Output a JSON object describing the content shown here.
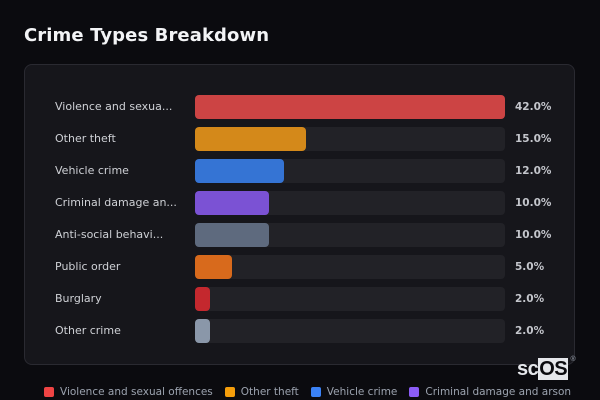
{
  "page": {
    "title": "Crime Types Breakdown"
  },
  "chart_data": {
    "type": "bar",
    "orientation": "horizontal",
    "title": "Crime Types Breakdown",
    "categories": [
      "Violence and sexual offences",
      "Other theft",
      "Vehicle crime",
      "Criminal damage and arson",
      "Anti-social behaviour",
      "Public order",
      "Burglary",
      "Other crime"
    ],
    "display_labels": [
      "Violence and sexua...",
      "Other theft",
      "Vehicle crime",
      "Criminal damage an...",
      "Anti-social behavi...",
      "Public order",
      "Burglary",
      "Other crime"
    ],
    "values": [
      42.0,
      15.0,
      12.0,
      10.0,
      10.0,
      5.0,
      2.0,
      2.0
    ],
    "value_labels": [
      "42.0%",
      "15.0%",
      "12.0%",
      "10.0%",
      "10.0%",
      "5.0%",
      "2.0%",
      "2.0%"
    ],
    "colors": [
      "#cc4444",
      "#d4891a",
      "#3574d4",
      "#7b52d4",
      "#5e6a7e",
      "#d86a1c",
      "#c4282e",
      "#8a97a9"
    ],
    "unit": "%",
    "scale_max": 42.0,
    "legend_position": "bottom",
    "legend": [
      {
        "label": "Violence and sexual offences",
        "color": "#ef4444"
      },
      {
        "label": "Other theft",
        "color": "#f59e0b"
      },
      {
        "label": "Vehicle crime",
        "color": "#3b82f6"
      },
      {
        "label": "Criminal damage and arson",
        "color": "#8b5cf6"
      }
    ],
    "grid": false
  },
  "watermark": {
    "prefix": "sc",
    "highlight": "OS",
    "mark": "®"
  }
}
